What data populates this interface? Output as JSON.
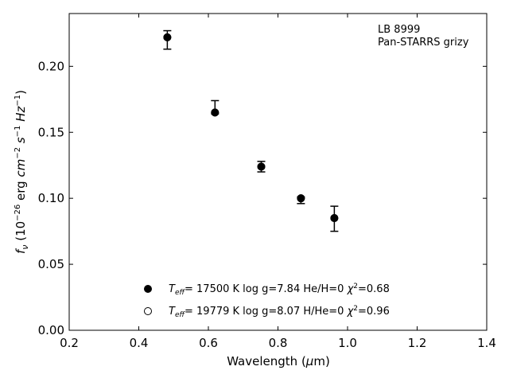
{
  "chart_data": {
    "type": "scatter",
    "xlabel": "Wavelength (μm)",
    "ylabel": "f_ν (10^-26 erg cm^-2 s^-1 Hz^-1)",
    "xlim": [
      0.2,
      1.4
    ],
    "ylim": [
      0.0,
      0.24
    ],
    "xticks": [
      "0.2",
      "0.4",
      "0.6",
      "0.8",
      "1.0",
      "1.2",
      "1.4"
    ],
    "yticks": [
      "0.00",
      "0.05",
      "0.10",
      "0.15",
      "0.20"
    ],
    "annotation": [
      "LB 8999",
      "Pan-STARRS grizy"
    ],
    "grid": false,
    "legend_position": "bottom-center",
    "series": [
      {
        "name": "T_eff= 17500 K  log g=7.84  He/H=0  χ²=0.68",
        "marker": "filled-circle",
        "x": [
          0.482,
          0.619,
          0.752,
          0.866,
          0.962
        ],
        "y": [
          0.222,
          0.165,
          0.124,
          0.1,
          0.085
        ]
      },
      {
        "name": "T_eff= 19779 K  log g=8.07  H/He=0  χ²=0.96",
        "marker": "open-circle",
        "x": [
          0.482,
          0.619,
          0.752,
          0.866,
          0.962
        ],
        "y": [
          0.222,
          0.165,
          0.124,
          0.1,
          0.085
        ]
      }
    ],
    "observed": {
      "x": [
        0.482,
        0.619,
        0.752,
        0.866,
        0.962
      ],
      "y": [
        0.22,
        0.166,
        0.124,
        0.099,
        0.084
      ],
      "yerr_low": [
        0.007,
        0.002,
        0.004,
        0.003,
        0.009
      ],
      "yerr_high": [
        0.007,
        0.008,
        0.004,
        0.002,
        0.01
      ]
    }
  }
}
